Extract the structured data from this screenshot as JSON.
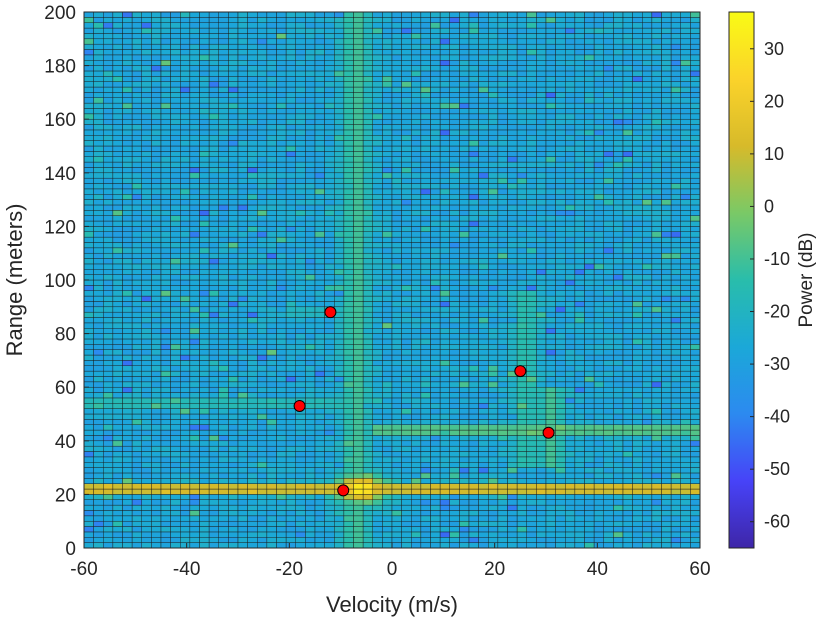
{
  "chart_data": {
    "type": "heatmap",
    "title": "",
    "xlabel": "Velocity (m/s)",
    "ylabel": "Range (meters)",
    "xlim": [
      -60,
      60
    ],
    "ylim": [
      0,
      200
    ],
    "xticks": [
      -60,
      -40,
      -20,
      0,
      20,
      40,
      60
    ],
    "yticks": [
      0,
      20,
      40,
      60,
      80,
      100,
      120,
      140,
      160,
      180,
      200
    ],
    "colorbar": {
      "label": "Power (dB)",
      "range": [
        -65,
        37
      ],
      "ticks": [
        30,
        20,
        10,
        0,
        -10,
        -20,
        -30,
        -40,
        -50,
        -60
      ],
      "colormap": [
        "#3e26a8",
        "#4743f8",
        "#2c8af0",
        "#1ba8d8",
        "#29bdab",
        "#7ac966",
        "#d7ba2a",
        "#fbd32a",
        "#f9fb15"
      ]
    },
    "background_power_db": -27,
    "range_ridges": [
      {
        "range": 22,
        "power_db": 24,
        "span": [
          -60,
          60
        ]
      },
      {
        "range": 44,
        "power_db": -1,
        "span": [
          -3,
          60
        ]
      },
      {
        "range": 54,
        "power_db": -14,
        "span": [
          -60,
          -10
        ]
      },
      {
        "range": 88,
        "power_db": -16,
        "span": [
          -20,
          -5
        ]
      }
    ],
    "velocity_ridges": [
      {
        "velocity": -7,
        "power_db": -10,
        "span": [
          0,
          200
        ]
      },
      {
        "velocity": 26,
        "power_db": -14,
        "span": [
          30,
          95
        ]
      },
      {
        "velocity": 31,
        "power_db": -10,
        "span": [
          30,
          60
        ]
      }
    ],
    "detections": [
      {
        "velocity": -12,
        "range": 88
      },
      {
        "velocity": -18,
        "range": 53
      },
      {
        "velocity": 25,
        "range": 66
      },
      {
        "velocity": 30.5,
        "range": 43
      },
      {
        "velocity": -9.5,
        "range": 21.5
      }
    ],
    "detection_color": "#ff0000"
  }
}
